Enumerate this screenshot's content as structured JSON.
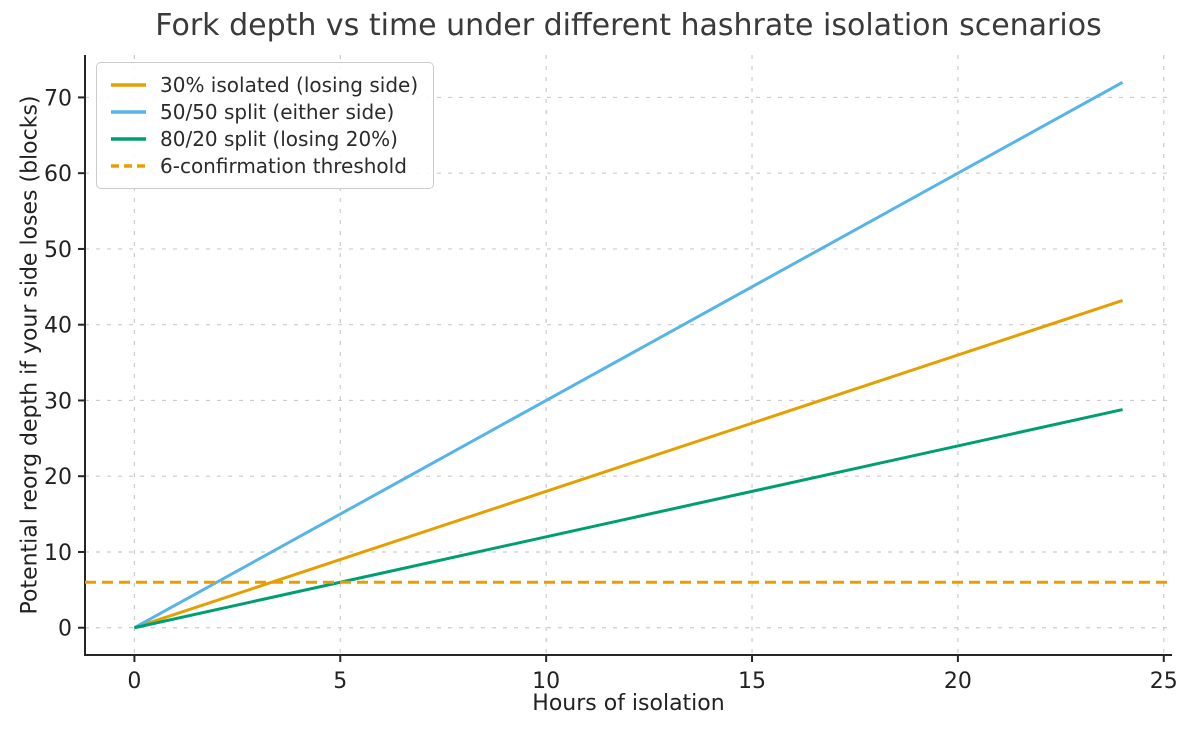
{
  "chart_data": {
    "type": "line",
    "title": "Fork depth vs time under different hashrate isolation scenarios",
    "xlabel": "Hours of isolation",
    "ylabel": "Potential reorg depth if your side loses (blocks)",
    "xlim": [
      -1.2,
      25.2
    ],
    "ylim": [
      -3.6,
      75.6
    ],
    "xticks": [
      0,
      5,
      10,
      15,
      20,
      25
    ],
    "yticks": [
      0,
      10,
      20,
      30,
      40,
      50,
      60,
      70
    ],
    "grid": true,
    "grid_color": "#cccccc",
    "spine_color": "#262626",
    "text_color": "#222222",
    "legend_position": "upper-left",
    "series": [
      {
        "name": "30% isolated (losing side)",
        "color": "#E69F00",
        "style": "solid",
        "x": [
          0,
          24
        ],
        "y": [
          0,
          43.2
        ]
      },
      {
        "name": "50/50 split (either side)",
        "color": "#56B4E9",
        "style": "solid",
        "x": [
          0,
          24
        ],
        "y": [
          0,
          72
        ]
      },
      {
        "name": "80/20 split (losing 20%)",
        "color": "#009E73",
        "style": "solid",
        "x": [
          0,
          24
        ],
        "y": [
          0,
          28.8
        ]
      },
      {
        "name": "6-confirmation threshold",
        "color": "#E69F00",
        "style": "dashed",
        "x": [
          -1.2,
          25.2
        ],
        "y": [
          6,
          6
        ]
      }
    ]
  }
}
